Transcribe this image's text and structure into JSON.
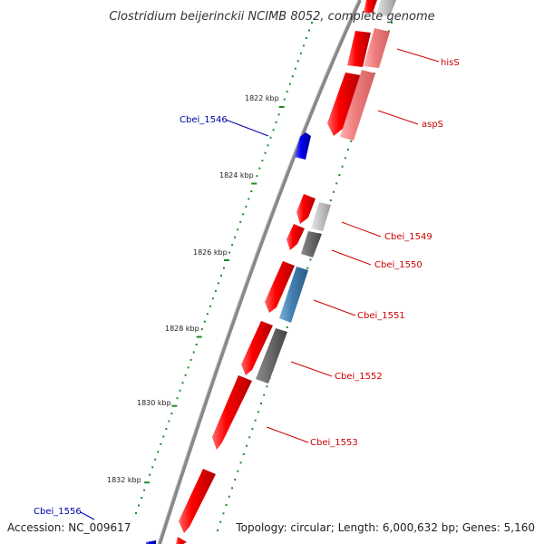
{
  "title": "Clostridium beijerinckii NCIMB 8052, complete genome",
  "footer": {
    "accession": "Accession: NC_009617",
    "summary": "Topology: circular; Length: 6,000,632 bp; Genes: 5,160"
  },
  "ruler": {
    "ticks": [
      "1822 kbp",
      "1824 kbp",
      "1826 kbp",
      "1828 kbp",
      "1830 kbp",
      "1832 kbp"
    ]
  },
  "colors": {
    "forward": "#ff0000",
    "reverse": "#0000ee",
    "backbone": "#888888",
    "tick": "#228b22",
    "label_forward": "#cc0000",
    "label_reverse": "#0000aa"
  },
  "genes": [
    {
      "label": "hisS",
      "strand": "outer",
      "color": "#f08080"
    },
    {
      "label": "aspS",
      "strand": "outer",
      "color": "#f08080"
    },
    {
      "label": "Cbei_1546",
      "strand": "reverse",
      "color": "#0000ee"
    },
    {
      "label": "Cbei_1549",
      "strand": "outer",
      "color": "#c8c8c8"
    },
    {
      "label": "Cbei_1550",
      "strand": "outer",
      "color": "#6e6e6e"
    },
    {
      "label": "Cbei_1551",
      "strand": "outer",
      "color": "#4682b4"
    },
    {
      "label": "Cbei_1552",
      "strand": "outer",
      "color": "#6e6e6e"
    },
    {
      "label": "Cbei_1553",
      "strand": "forward",
      "color": "#ff0000"
    },
    {
      "label": "Cbei_1556",
      "strand": "reverse",
      "color": "#0000ee"
    }
  ]
}
